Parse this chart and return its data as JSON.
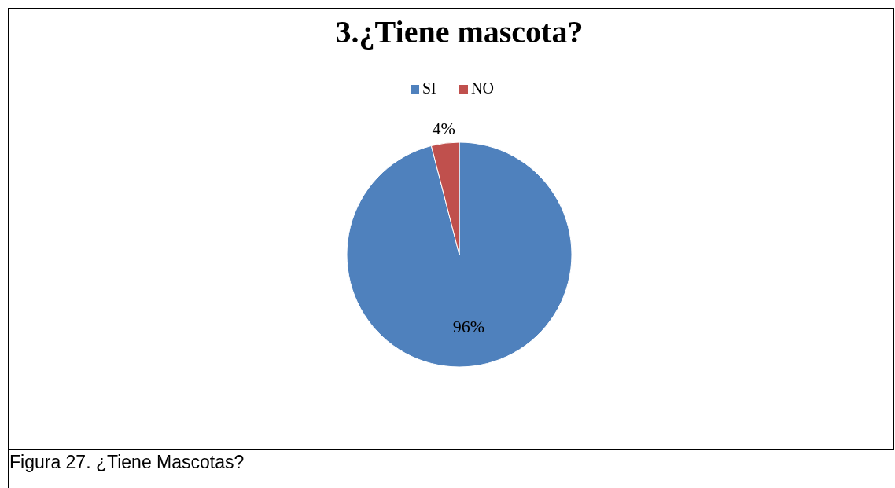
{
  "chart_data": {
    "type": "pie",
    "title": "3.¿Tiene mascota?",
    "categories": [
      "SI",
      "NO"
    ],
    "values": [
      96,
      4
    ],
    "colors": [
      "#4f81bd",
      "#c0504d"
    ],
    "value_labels": [
      "96%",
      "4%"
    ],
    "legend": "top",
    "annotations": [
      "Figura 27. ¿Tiene Mascotas?"
    ]
  }
}
